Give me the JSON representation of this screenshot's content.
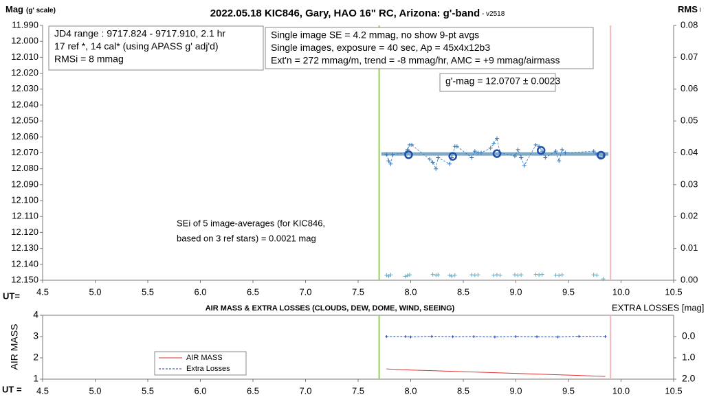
{
  "chart_data": [
    {
      "type": "line",
      "title": "2022.05.18 KIC846, Gary, HAO 16\" RC, Arizona: g'-band",
      "subtitle": " - v2518",
      "ylabel": "Mag",
      "ylabel_note": "(g' scale)",
      "y2label": "RMS",
      "y2label_note": "i",
      "xlabel": "UT=",
      "xlim": [
        4.5,
        10.5
      ],
      "xticks": [
        4.5,
        {
          "value": 5,
          "label": "5.0"
        },
        5.5,
        {
          "value": 6,
          "label": "6.0"
        },
        6.5,
        {
          "value": 7,
          "label": "7.0"
        },
        7.5,
        {
          "value": 8,
          "label": "8.0"
        },
        8.5,
        {
          "value": 9,
          "label": "9.0"
        },
        9.5,
        {
          "value": 10,
          "label": "10.0"
        },
        10.5
      ],
      "ylim": [
        11.99,
        12.15
      ],
      "y_inverted": true,
      "yticks": [
        {
          "value": 11.99,
          "label": "11.990"
        },
        {
          "value": 12,
          "label": "12.000"
        },
        {
          "value": 12.01,
          "label": "12.010"
        },
        {
          "value": 12.02,
          "label": "12.020"
        },
        {
          "value": 12.03,
          "label": "12.030"
        },
        {
          "value": 12.04,
          "label": "12.040"
        },
        {
          "value": 12.05,
          "label": "12.050"
        },
        {
          "value": 12.06,
          "label": "12.060"
        },
        {
          "value": 12.07,
          "label": "12.070"
        },
        {
          "value": 12.08,
          "label": "12.080"
        },
        {
          "value": 12.09,
          "label": "12.090"
        },
        {
          "value": 12.1,
          "label": "12.100"
        },
        {
          "value": 12.11,
          "label": "12.110"
        },
        {
          "value": 12.12,
          "label": "12.120"
        },
        {
          "value": 12.13,
          "label": "12.130"
        },
        {
          "value": 12.14,
          "label": "12.140"
        },
        {
          "value": 12.15,
          "label": "12.150"
        }
      ],
      "y2lim": [
        0,
        0.08
      ],
      "y2ticks": [
        {
          "value": 0,
          "label": "0.00"
        },
        0.01,
        0.02,
        0.03,
        0.04,
        0.05,
        0.06,
        0.07,
        {
          "value": 0.08,
          "label": "0.08"
        }
      ],
      "vlines": [
        {
          "x": 7.7,
          "color": "#92d050"
        },
        {
          "x": 9.9,
          "color": "#f4b8b8"
        }
      ],
      "series": [
        {
          "color": "#7fa9c4",
          "marker": "none",
          "line": "solid",
          "width": 5,
          "x": [
            7.72,
            9.88
          ],
          "values": [
            12.0707,
            12.0707
          ]
        },
        {
          "color": "#2e75b6",
          "marker": "plus",
          "line": "dashed",
          "width": 0.8,
          "x": [
            7.77,
            7.79,
            7.81,
            7.83,
            7.95,
            7.97,
            7.99,
            8.01,
            8.18,
            8.21,
            8.24,
            8.26,
            8.37,
            8.39,
            8.42,
            8.44,
            8.58,
            8.61,
            8.64,
            8.67,
            8.76,
            8.79,
            8.82,
            8.85,
            8.99,
            9.02,
            9.05,
            9.08,
            9.19,
            9.22,
            9.25,
            9.28,
            9.38,
            9.41,
            9.44,
            9.47,
            9.74,
            9.77,
            9.8,
            9.83
          ],
          "values": [
            12.071,
            12.075,
            12.077,
            12.071,
            12.07,
            12.068,
            12.065,
            12.065,
            12.074,
            12.076,
            12.08,
            12.073,
            12.077,
            12.073,
            12.066,
            12.066,
            12.073,
            12.069,
            12.07,
            12.07,
            12.067,
            12.064,
            12.061,
            12.07,
            12.072,
            12.068,
            12.073,
            12.078,
            12.065,
            12.066,
            12.069,
            12.073,
            12.069,
            12.075,
            12.068,
            12.07,
            12.069,
            12.071,
            12.073,
            12.072
          ]
        },
        {
          "color": "#1f4fa8",
          "marker": "circle",
          "line": "none",
          "width": 2.5,
          "x": [
            7.98,
            8.4,
            8.82,
            9.24,
            9.81
          ],
          "values": [
            12.0712,
            12.0722,
            12.0705,
            12.0685,
            12.0715
          ]
        },
        {
          "color": "#6aa7c0",
          "marker": "plus",
          "line": "none",
          "width": 0.8,
          "axis": "y2",
          "x": [
            7.77,
            7.79,
            7.81,
            7.95,
            7.97,
            7.99,
            8.21,
            8.24,
            8.26,
            8.37,
            8.39,
            8.42,
            8.58,
            8.61,
            8.64,
            8.79,
            8.82,
            8.85,
            8.99,
            9.02,
            9.05,
            9.19,
            9.22,
            9.25,
            9.38,
            9.41,
            9.44,
            9.74,
            9.77,
            9.83
          ],
          "values": [
            0.0016,
            0.0013,
            0.0017,
            0.0012,
            0.0015,
            0.0017,
            0.0018,
            0.0016,
            0.0017,
            0.0016,
            0.0013,
            0.0016,
            0.0017,
            0.0016,
            0.0017,
            0.0016,
            0.0017,
            0.0016,
            0.0017,
            0.0016,
            0.0017,
            0.0018,
            0.0017,
            0.0018,
            0.0016,
            0.0015,
            0.0017,
            0.0017,
            0.0016,
            0.0004
          ]
        }
      ],
      "annotations": [
        {
          "border": true,
          "lines": [
            "JD4 range : 9717.824 - 9717.910,  2.1  hr",
            "17 ref *, 14 cal* (using APASS g' adj'd)",
            "RMSi = 8 mmag"
          ]
        },
        {
          "border": true,
          "lines": [
            "Single image SE = 4.2 mmag, no show  9-pt avgs",
            "Single images, exposure = 40 sec, Ap = 45x4x12b3",
            "Ext'n = 272 mmag/m, trend = -8 mmag/hr, AMC = +9 mmag/airmass"
          ]
        },
        {
          "border": true,
          "lines": [
            "g'-mag = 12.0707 ± 0.0023"
          ]
        },
        {
          "border": false,
          "lines": [
            "SEi of 5 image-averages (for KIC846,",
            "based on 3 ref stars) = 0.0021 mag"
          ]
        }
      ]
    },
    {
      "type": "line",
      "title": "AIR MASS & EXTRA LOSSES (CLOUDS, DEW, DOME, WIND, SEEING)",
      "ylabel": "AIR MASS",
      "y2label": "EXTRA LOSSES [mag]",
      "xlabel": "UT =",
      "xlim": [
        4.5,
        10.5
      ],
      "xticks": [
        4.5,
        {
          "value": 5,
          "label": "5.0"
        },
        5.5,
        {
          "value": 6,
          "label": "6.0"
        },
        6.5,
        {
          "value": 7,
          "label": "7.0"
        },
        7.5,
        {
          "value": 8,
          "label": "8.0"
        },
        8.5,
        {
          "value": 9,
          "label": "9.0"
        },
        9.5,
        {
          "value": 10,
          "label": "10.0"
        },
        10.5
      ],
      "ylim": [
        1,
        4
      ],
      "yticks": [
        1,
        2,
        3,
        4
      ],
      "y2lim": [
        -1,
        2
      ],
      "y2_inverted": true,
      "y2ticks": [
        {
          "value": 0,
          "label": "0.0"
        },
        {
          "value": 1,
          "label": "1.0"
        },
        {
          "value": 2,
          "label": "2.0"
        }
      ],
      "vlines": [
        {
          "x": 7.7,
          "color": "#92d050"
        },
        {
          "x": 9.9,
          "color": "#f4b8b8"
        }
      ],
      "series": [
        {
          "name": "AIR MASS",
          "color": "#e03030",
          "marker": "none",
          "line": "solid",
          "width": 1,
          "x": [
            7.77,
            8.0,
            8.5,
            9.0,
            9.5,
            9.85
          ],
          "values": [
            1.48,
            1.43,
            1.35,
            1.27,
            1.19,
            1.13
          ]
        },
        {
          "name": "Extra Losses",
          "color": "#1f3fa8",
          "marker": "plus",
          "line": "dashed",
          "width": 1,
          "axis": "y2",
          "x": [
            7.77,
            7.95,
            8.0,
            8.2,
            8.4,
            8.6,
            8.8,
            9.0,
            9.2,
            9.4,
            9.6,
            9.85
          ],
          "values": [
            0.0,
            0.0,
            0.02,
            -0.01,
            0.01,
            0.0,
            0.02,
            0.0,
            0.01,
            0.02,
            -0.01,
            0.0
          ]
        }
      ]
    }
  ]
}
